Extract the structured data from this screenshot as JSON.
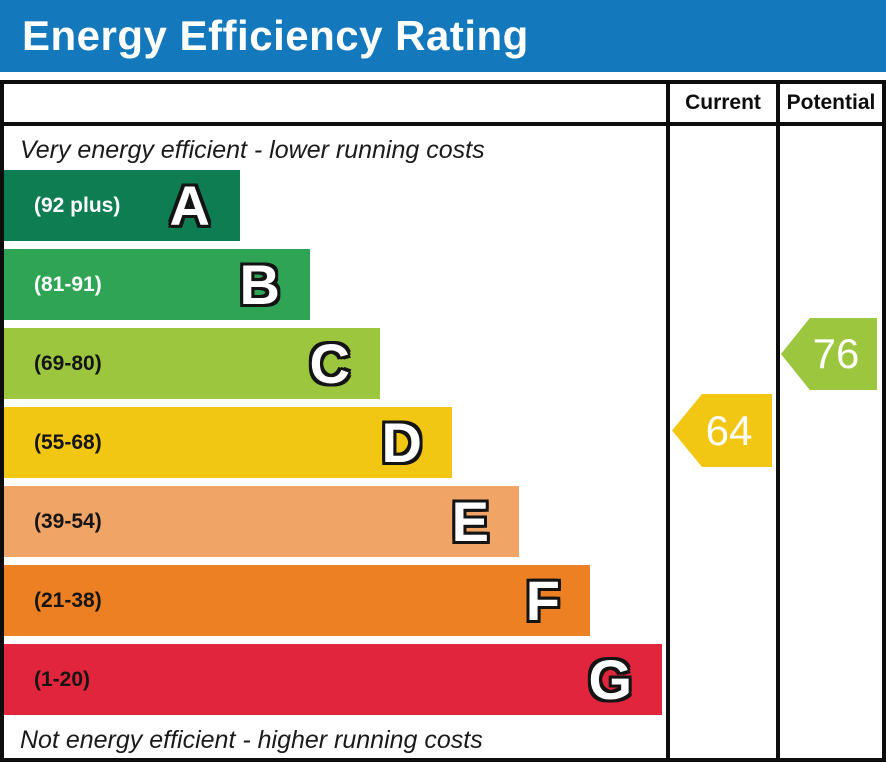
{
  "header": {
    "title": "Energy Efficiency Rating",
    "bg_color": "#1478bd",
    "text_color": "#ffffff"
  },
  "table": {
    "border_color": "#0d0d0d",
    "column_headers": {
      "current": "Current",
      "potential": "Potential"
    }
  },
  "notes": {
    "top": "Very energy efficient - lower running costs",
    "bottom": "Not energy efficient - higher running costs"
  },
  "chart_data": {
    "type": "bar",
    "title": "Energy Efficiency Rating",
    "orientation": "horizontal",
    "scale": {
      "min": 1,
      "max": 100
    },
    "bands": [
      {
        "letter": "A",
        "range": "(92 plus)",
        "min": 92,
        "max": 100,
        "color": "#0e7d51"
      },
      {
        "letter": "B",
        "range": "(81-91)",
        "min": 81,
        "max": 91,
        "color": "#30a455"
      },
      {
        "letter": "C",
        "range": "(69-80)",
        "min": 69,
        "max": 80,
        "color": "#9cc63d"
      },
      {
        "letter": "D",
        "range": "(55-68)",
        "min": 55,
        "max": 68,
        "color": "#f2c713"
      },
      {
        "letter": "E",
        "range": "(39-54)",
        "min": 39,
        "max": 54,
        "color": "#f0a466"
      },
      {
        "letter": "F",
        "range": "(21-38)",
        "min": 21,
        "max": 38,
        "color": "#ed8023"
      },
      {
        "letter": "G",
        "range": "(1-20)",
        "min": 1,
        "max": 20,
        "color": "#e1253c"
      }
    ],
    "markers": {
      "current": {
        "value": "64",
        "band": "D",
        "color": "#f2c713"
      },
      "potential": {
        "value": "76",
        "band": "C",
        "color": "#9cc63d"
      }
    }
  }
}
